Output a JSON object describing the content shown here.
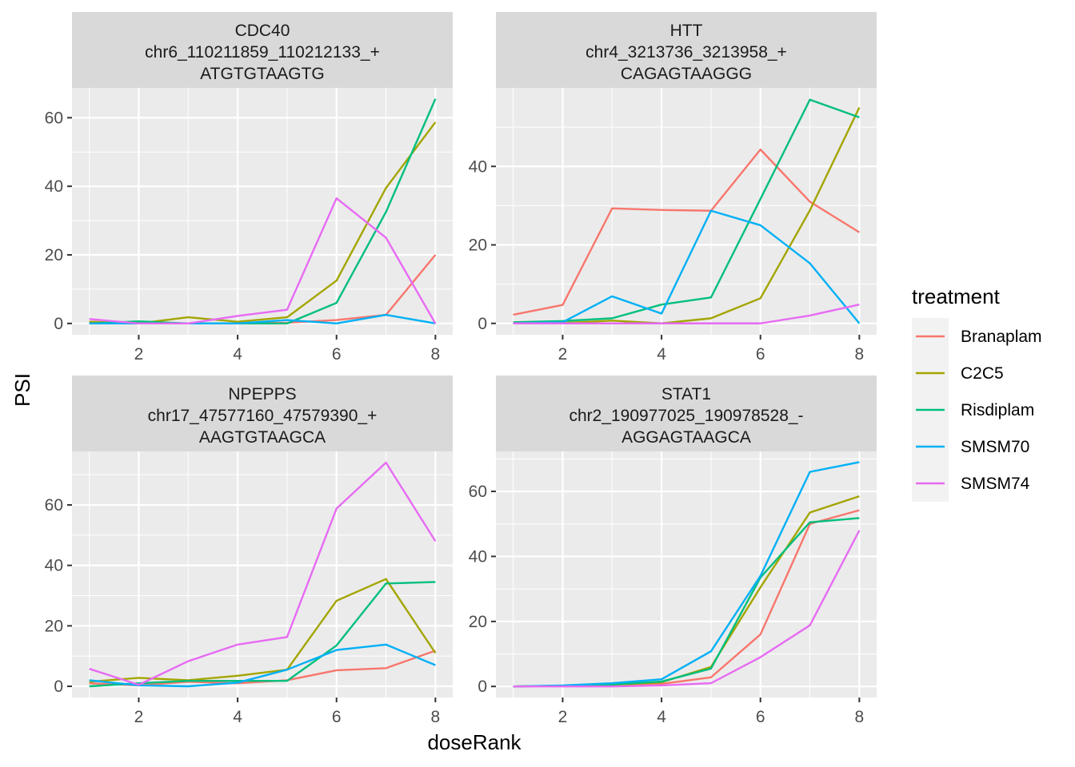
{
  "chart_data": {
    "type": "line",
    "xlabel": "doseRank",
    "ylabel": "PSI",
    "legend": {
      "title": "treatment",
      "position": "right",
      "entries": [
        "Branaplam",
        "C2C5",
        "Risdiplam",
        "SMSM70",
        "SMSM74"
      ]
    },
    "series_colors": {
      "Branaplam": "#F8766D",
      "C2C5": "#A3A500",
      "Risdiplam": "#00BF7D",
      "SMSM70": "#00B0F6",
      "SMSM74": "#E76BF3"
    },
    "grid": true,
    "panels": [
      {
        "strip": [
          "CDC40",
          "chr6_110211859_110212133_+",
          "ATGTGTAAGTG"
        ],
        "xlim": [
          0.65,
          8.35
        ],
        "ylim": [
          -3.3,
          68.7
        ],
        "x_ticks": [
          2,
          4,
          6,
          8
        ],
        "y_ticks": [
          0,
          20,
          40,
          60
        ],
        "x": [
          1,
          2,
          3,
          4,
          5,
          6,
          7,
          8
        ],
        "series": [
          {
            "name": "Branaplam",
            "values": [
              0.5,
              0.0,
              0.0,
              0.0,
              0.2,
              1.0,
              2.5,
              20.0
            ]
          },
          {
            "name": "C2C5",
            "values": [
              0.5,
              0.0,
              1.8,
              0.5,
              1.8,
              12.5,
              39.5,
              58.7
            ]
          },
          {
            "name": "Risdiplam",
            "values": [
              0.0,
              0.6,
              0.0,
              0.0,
              0.0,
              6.0,
              32.5,
              65.5
            ]
          },
          {
            "name": "SMSM70",
            "values": [
              0.0,
              0.0,
              0.0,
              0.0,
              1.0,
              0.0,
              2.5,
              0.0
            ]
          },
          {
            "name": "SMSM74",
            "values": [
              1.3,
              0.0,
              0.0,
              2.2,
              4.0,
              36.5,
              25.0,
              0.0
            ]
          }
        ]
      },
      {
        "strip": [
          "HTT",
          "chr4_3213736_3213958_+",
          "CAGAGTAAGGG"
        ],
        "xlim": [
          0.65,
          8.35
        ],
        "ylim": [
          -2.9,
          60.0
        ],
        "x_ticks": [
          2,
          4,
          6,
          8
        ],
        "y_ticks": [
          0,
          20,
          40
        ],
        "x": [
          1,
          2,
          3,
          4,
          5,
          6,
          7,
          8
        ],
        "series": [
          {
            "name": "Branaplam",
            "values": [
              2.2,
              4.7,
              29.3,
              28.9,
              28.7,
              44.3,
              31.0,
              23.2
            ]
          },
          {
            "name": "C2C5",
            "values": [
              0.0,
              0.1,
              0.7,
              0.0,
              1.3,
              6.4,
              28.8,
              55.0
            ]
          },
          {
            "name": "Risdiplam",
            "values": [
              0.3,
              0.6,
              1.3,
              4.8,
              6.6,
              31.7,
              57.0,
              52.5
            ]
          },
          {
            "name": "SMSM70",
            "values": [
              0.0,
              0.3,
              6.9,
              2.5,
              28.7,
              25.0,
              15.3,
              0.0
            ]
          },
          {
            "name": "SMSM74",
            "values": [
              0.0,
              0.0,
              0.0,
              0.0,
              0.0,
              0.0,
              2.0,
              4.8
            ]
          }
        ]
      },
      {
        "strip": [
          "NPEPPS",
          "chr17_47577160_47579390_+",
          "AAGTGTAAGCA"
        ],
        "xlim": [
          0.65,
          8.35
        ],
        "ylim": [
          -3.7,
          77.7
        ],
        "x_ticks": [
          2,
          4,
          6,
          8
        ],
        "y_ticks": [
          0,
          20,
          40,
          60
        ],
        "x": [
          1,
          2,
          3,
          4,
          5,
          6,
          7,
          8
        ],
        "series": [
          {
            "name": "Branaplam",
            "values": [
              1.0,
              0.3,
              1.5,
              1.0,
              2.0,
              5.3,
              6.0,
              11.8
            ]
          },
          {
            "name": "C2C5",
            "values": [
              1.5,
              2.8,
              2.0,
              3.5,
              5.5,
              28.3,
              35.5,
              11.0
            ]
          },
          {
            "name": "Risdiplam",
            "values": [
              0.0,
              1.0,
              1.8,
              1.8,
              1.8,
              13.5,
              34.0,
              34.5
            ]
          },
          {
            "name": "SMSM70",
            "values": [
              2.0,
              0.3,
              0.0,
              1.2,
              5.5,
              12.0,
              13.8,
              7.0
            ]
          },
          {
            "name": "SMSM74",
            "values": [
              5.8,
              0.5,
              8.3,
              13.8,
              16.3,
              58.8,
              74.0,
              48.0
            ]
          }
        ]
      },
      {
        "strip": [
          "STAT1",
          "chr2_190977025_190978528_-",
          "AGGAGTAAGCA"
        ],
        "xlim": [
          0.65,
          8.35
        ],
        "ylim": [
          -3.4,
          72.3
        ],
        "x_ticks": [
          2,
          4,
          6,
          8
        ],
        "y_ticks": [
          0,
          20,
          40,
          60
        ],
        "x": [
          1,
          2,
          3,
          4,
          5,
          6,
          7,
          8
        ],
        "series": [
          {
            "name": "Branaplam",
            "values": [
              0.0,
              0.2,
              0.4,
              0.8,
              2.8,
              16.0,
              50.0,
              54.2
            ]
          },
          {
            "name": "C2C5",
            "values": [
              0.0,
              0.2,
              0.5,
              1.3,
              6.0,
              30.5,
              53.5,
              58.5
            ]
          },
          {
            "name": "Risdiplam",
            "values": [
              0.0,
              0.2,
              0.6,
              1.5,
              5.5,
              33.5,
              50.5,
              51.8
            ]
          },
          {
            "name": "SMSM70",
            "values": [
              0.0,
              0.3,
              1.0,
              2.2,
              10.8,
              34.0,
              66.0,
              69.0
            ]
          },
          {
            "name": "SMSM74",
            "values": [
              0.0,
              0.0,
              0.0,
              0.3,
              1.0,
              9.0,
              18.8,
              48.0
            ]
          }
        ]
      }
    ]
  }
}
